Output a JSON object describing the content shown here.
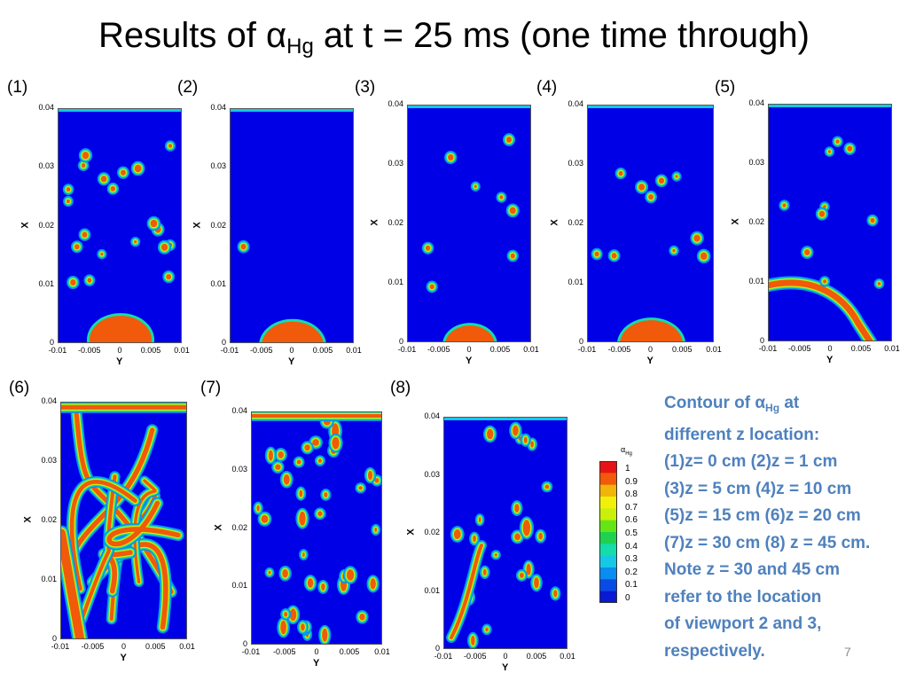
{
  "title": {
    "prefix": "Results of α",
    "sub": "Hg",
    "suffix": "  at t = 25 ms (one time through)"
  },
  "colors": {
    "blue": "#0000e6",
    "red": "#f05a0a",
    "accent_text": "#4f81bd",
    "scale": [
      "#0a19d2",
      "#0a4be6",
      "#0a8cf0",
      "#14c8e6",
      "#14dcaa",
      "#1ed250",
      "#64e614",
      "#c8f00a",
      "#f0f00a",
      "#f0b40a",
      "#f05a0a",
      "#e61414"
    ]
  },
  "axes": {
    "xlabel": "Y",
    "ylabel": "X",
    "xticks": [
      "-0.01",
      "-0.005",
      "0",
      "0.005",
      "0.01"
    ],
    "yticks": [
      "0",
      "0.01",
      "0.02",
      "0.03",
      "0.04"
    ]
  },
  "chart_data": [
    {
      "type": "heatmap",
      "panel": "(1)",
      "z_cm": 0,
      "quantity": "α_Hg",
      "xlim": [
        -0.01,
        0.01
      ],
      "ylim": [
        0,
        0.04
      ],
      "features": [
        {
          "kind": "mercury-dome",
          "center_y": 0.001,
          "radius": 0.005
        },
        {
          "kind": "scattered-droplets",
          "count": 20
        }
      ]
    },
    {
      "type": "heatmap",
      "panel": "(2)",
      "z_cm": 1,
      "quantity": "α_Hg",
      "xlim": [
        -0.01,
        0.01
      ],
      "ylim": [
        0,
        0.04
      ],
      "features": [
        {
          "kind": "mercury-dome",
          "center_y": 0.0,
          "radius": 0.005
        },
        {
          "kind": "scattered-droplets",
          "count": 1
        }
      ]
    },
    {
      "type": "heatmap",
      "panel": "(3)",
      "z_cm": 5,
      "quantity": "α_Hg",
      "xlim": [
        -0.01,
        0.01
      ],
      "ylim": [
        0,
        0.04
      ],
      "features": [
        {
          "kind": "mercury-dome",
          "center_y": 0.0,
          "radius": 0.004
        },
        {
          "kind": "scattered-droplets",
          "count": 8
        }
      ]
    },
    {
      "type": "heatmap",
      "panel": "(4)",
      "z_cm": 10,
      "quantity": "α_Hg",
      "xlim": [
        -0.01,
        0.01
      ],
      "ylim": [
        0,
        0.04
      ],
      "features": [
        {
          "kind": "mercury-dome",
          "center_y": 0.0,
          "radius": 0.005
        },
        {
          "kind": "scattered-droplets",
          "count": 10
        }
      ]
    },
    {
      "type": "heatmap",
      "panel": "(5)",
      "z_cm": 15,
      "quantity": "α_Hg",
      "xlim": [
        -0.01,
        0.01
      ],
      "ylim": [
        0,
        0.04
      ],
      "features": [
        {
          "kind": "mercury-band",
          "y_range": [
            0.0,
            0.01
          ]
        },
        {
          "kind": "scattered-droplets",
          "count": 10
        }
      ]
    },
    {
      "type": "heatmap",
      "panel": "(6)",
      "z_cm": 20,
      "quantity": "α_Hg",
      "xlim": [
        -0.01,
        0.01
      ],
      "ylim": [
        0,
        0.04
      ],
      "features": [
        {
          "kind": "dispersed-filaments",
          "coverage": "high"
        }
      ]
    },
    {
      "type": "heatmap",
      "panel": "(7)",
      "z_cm": 30,
      "quantity": "α_Hg",
      "xlim": [
        -0.01,
        0.01
      ],
      "ylim": [
        0,
        0.04
      ],
      "features": [
        {
          "kind": "dispersed-droplets",
          "coverage": "medium"
        }
      ]
    },
    {
      "type": "heatmap",
      "panel": "(8)",
      "z_cm": 45,
      "quantity": "α_Hg",
      "xlim": [
        -0.01,
        0.01
      ],
      "ylim": [
        0,
        0.04
      ],
      "features": [
        {
          "kind": "dispersed-droplets",
          "coverage": "low"
        }
      ]
    }
  ],
  "colorbar": {
    "title": "α",
    "title_sub": "Hg",
    "levels": [
      "1",
      "0.9",
      "0.8",
      "0.7",
      "0.6",
      "0.5",
      "0.4",
      "0.3",
      "0.2",
      "0.1",
      "0"
    ]
  },
  "caption": {
    "l1_pre": "Contour of α",
    "l1_sub": "Hg",
    "l1_post": " at",
    "l2": "different z location:",
    "l3": "(1)z= 0 cm (2)z = 1 cm",
    "l4": "(3)z = 5 cm (4)z = 10 cm",
    "l5": "(5)z = 15 cm (6)z = 20 cm",
    "l6": " (7)z = 30 cm (8) z = 45 cm.",
    "l7": "Note z = 30 and 45 cm",
    "l8": "refer to the  location",
    "l9": "of viewport 2 and 3,",
    "l10": "respectively."
  },
  "page_number": "7"
}
